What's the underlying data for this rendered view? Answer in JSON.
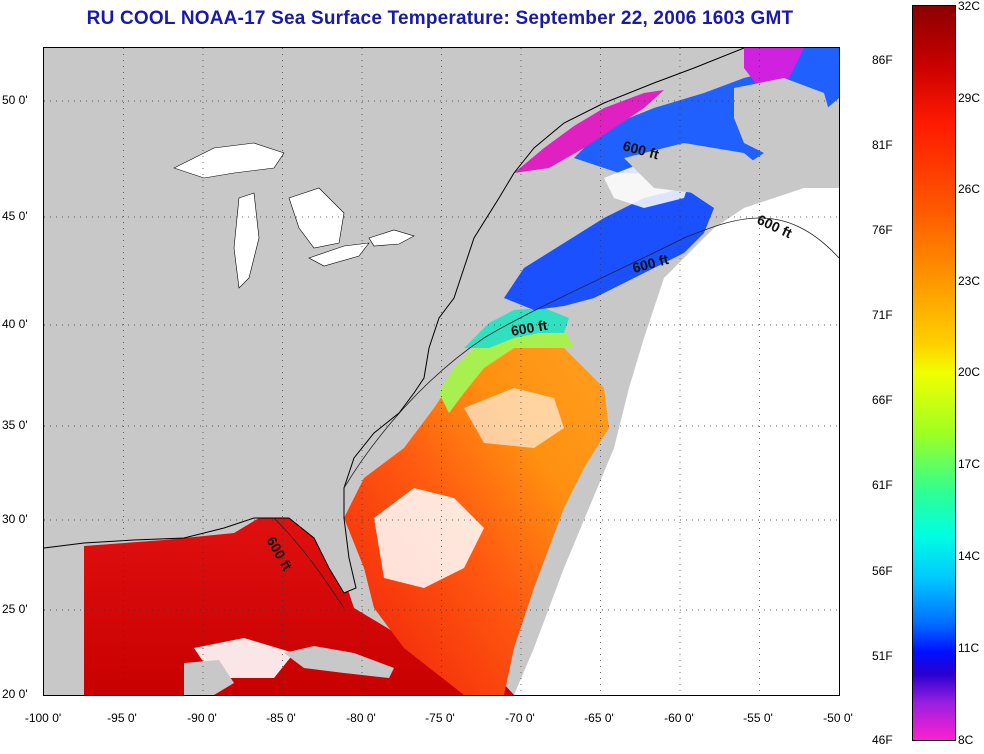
{
  "title": "RU COOL  NOAA-17  Sea Surface Temperature:  September 22, 2006 1603 GMT",
  "map": {
    "lon_range": [
      -100,
      -50
    ],
    "lat_range": [
      20,
      52
    ],
    "x_ticks": [
      "-100 0'",
      "-95 0'",
      "-90 0'",
      "-85 0'",
      "-80 0'",
      "-75 0'",
      "-70 0'",
      "-65 0'",
      "-60 0'",
      "-55 0'",
      "-50 0'"
    ],
    "y_ticks": [
      "50 0'",
      "45 0'",
      "40 0'",
      "35 0'",
      "30 0'",
      "25 0'",
      "20 0'"
    ],
    "contour_labels": [
      "600 ft",
      "600 ft",
      "600 ft",
      "600 ft",
      "600 ft"
    ],
    "land_color": "#c8c8c8",
    "cloud_color": "#ffffff"
  },
  "colorbar": {
    "fahrenheit": [
      "86F",
      "81F",
      "76F",
      "71F",
      "66F",
      "61F",
      "56F",
      "51F",
      "46F"
    ],
    "celsius": [
      "32C",
      "29C",
      "26C",
      "23C",
      "20C",
      "17C",
      "14C",
      "11C",
      "8C"
    ],
    "range_c": [
      8,
      32
    ],
    "range_f": [
      46,
      90
    ]
  }
}
